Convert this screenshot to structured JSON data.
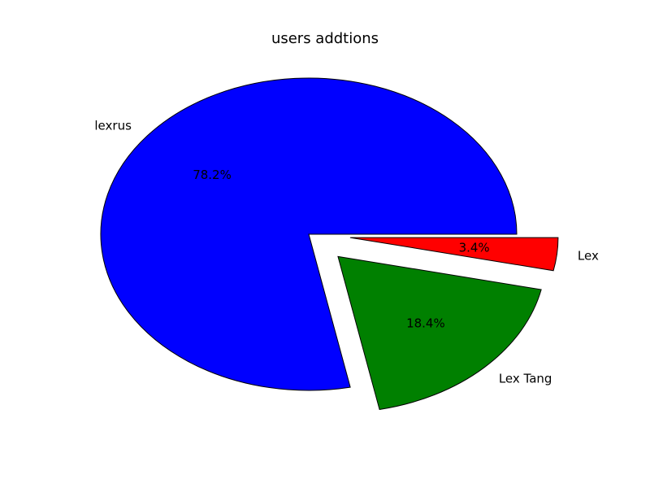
{
  "chart_data": {
    "type": "pie",
    "title": "users addtions",
    "slices": [
      {
        "label": "lexrus",
        "value": 78.2,
        "pct_label": "78.2%",
        "color": "#0000ff",
        "exploded": false
      },
      {
        "label": "Lex Tang",
        "value": 18.4,
        "pct_label": "18.4%",
        "color": "#008000",
        "exploded": true
      },
      {
        "label": "Lex",
        "value": 3.4,
        "pct_label": "3.4%",
        "color": "#ff0000",
        "exploded": true
      }
    ]
  }
}
